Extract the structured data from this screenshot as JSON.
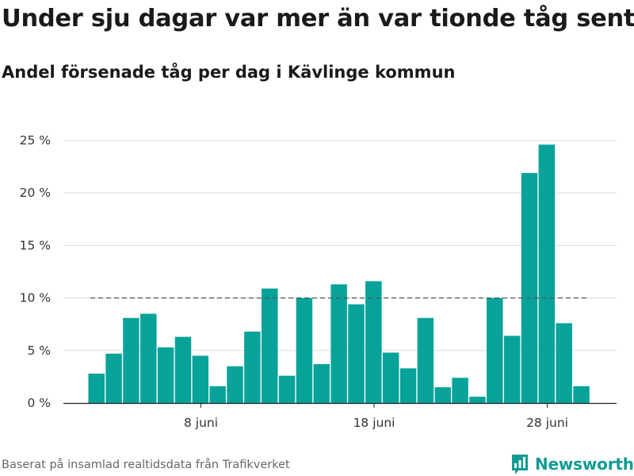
{
  "title": "Under sju dagar var mer än var tionde tåg sent",
  "subtitle": "Andel försenade tåg per dag i Kävlinge kommun",
  "footer": "Baserat på insamlad realtidsdata från Trafikverket",
  "brand": {
    "name": "Newsworthy",
    "icon": "newsworthy-logo-icon",
    "color": "#129b92"
  },
  "colors": {
    "bar": "#07a39a",
    "grid": "#dcdcdc",
    "reference_line": "#555555",
    "axis": "#222222"
  },
  "chart_data": {
    "type": "bar",
    "title": "Under sju dagar var mer än var tionde tåg sent",
    "subtitle": "Andel försenade tåg per dag i Kävlinge kommun",
    "xlabel": "",
    "ylabel": "",
    "x_unit": "day of June",
    "x": [
      2,
      3,
      4,
      5,
      6,
      7,
      8,
      9,
      10,
      11,
      12,
      13,
      14,
      15,
      16,
      17,
      18,
      19,
      20,
      21,
      22,
      23,
      24,
      25,
      26,
      27,
      28,
      29,
      30
    ],
    "values": [
      2.8,
      4.7,
      8.1,
      8.5,
      5.3,
      6.3,
      4.5,
      1.6,
      3.5,
      6.8,
      10.9,
      2.6,
      10.0,
      3.7,
      11.3,
      9.4,
      11.6,
      4.8,
      3.3,
      8.1,
      1.5,
      2.4,
      0.6,
      10.0,
      6.4,
      21.9,
      24.6,
      7.6,
      1.6
    ],
    "ylim": [
      0,
      25
    ],
    "y_ticks": [
      0,
      5,
      10,
      15,
      20,
      25
    ],
    "y_tick_labels": [
      "0 %",
      "5 %",
      "10 %",
      "15 %",
      "20 %",
      "25 %"
    ],
    "x_ticks": [
      8,
      18,
      28
    ],
    "x_tick_labels": [
      "8 juni",
      "18 juni",
      "28 juni"
    ],
    "reference_line": {
      "value": 10,
      "style": "dashed"
    },
    "grid": true,
    "legend": "none"
  }
}
